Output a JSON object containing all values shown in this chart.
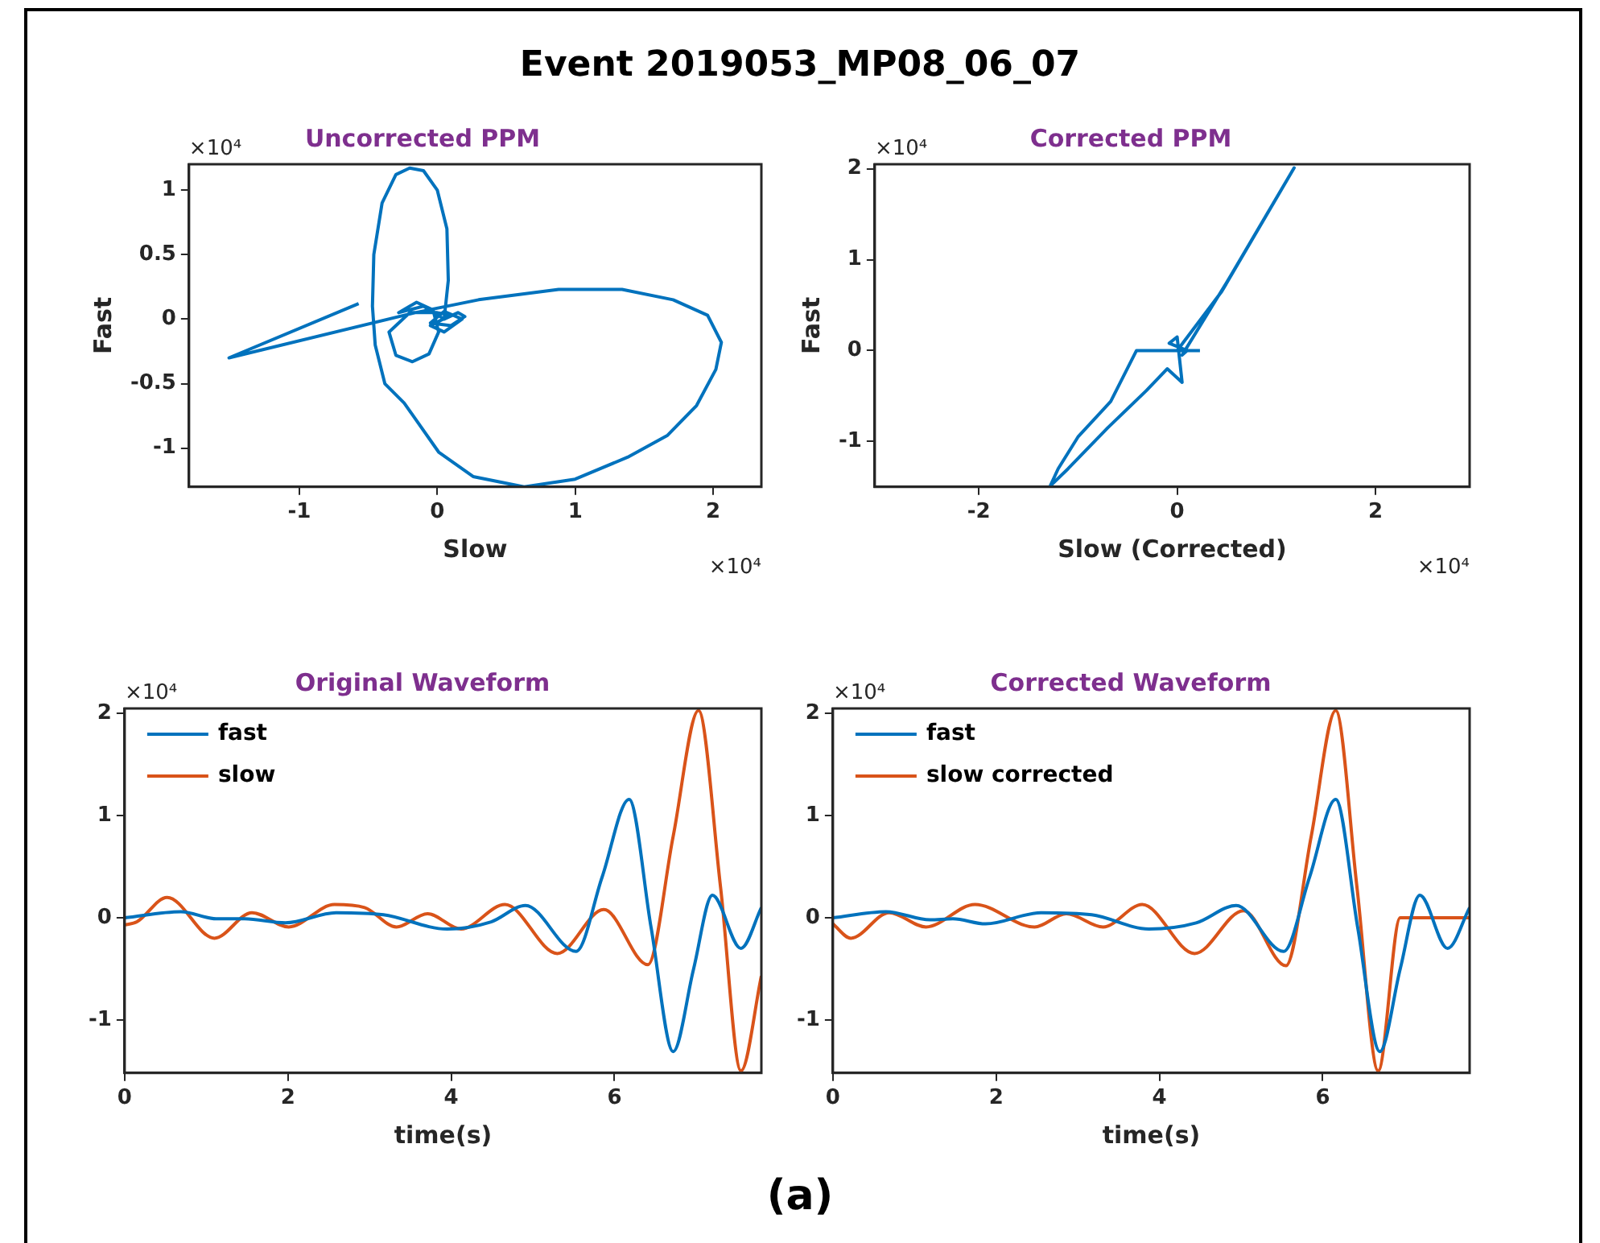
{
  "chart_data": [
    {
      "type": "other",
      "title": "Event 2019053_MP08_06_07",
      "annotations": [
        "(a)"
      ]
    },
    {
      "type": "line",
      "title": "Uncorrected PPM",
      "xlabel": "Slow",
      "ylabel": "Fast",
      "annotations": [
        "×10⁴",
        "×10⁴"
      ],
      "xlim": [
        -1.8,
        2.35
      ],
      "ylim": [
        -1.3,
        1.2
      ],
      "xticks": [
        -1,
        0,
        1,
        2
      ],
      "yticks": [
        -1,
        -0.5,
        0,
        0.5,
        1
      ],
      "series": [
        {
          "color": "#0072bd",
          "x": [
            0.05,
            0.15,
            0.2,
            0.1,
            -0.05,
            0.05,
            0.18,
            0.05,
            -0.05,
            0.1,
            0.0,
            -0.2,
            -0.35,
            -0.3,
            -0.18,
            -0.06,
            0.01,
            -0.03,
            -0.15,
            -0.28,
            -0.1,
            0.05,
            0.08,
            0.07,
            0.0,
            -0.1,
            -0.2,
            -0.3,
            -0.4,
            -0.46,
            -0.47,
            -0.45,
            -0.38,
            -0.24,
            0.01,
            0.26,
            0.63,
            1.0,
            1.38,
            1.67,
            1.88,
            2.02,
            2.06,
            1.96,
            1.71,
            1.34,
            0.88,
            0.3,
            -0.16,
            -1.51,
            -0.57
          ],
          "values": [
            0.0,
            0.05,
            0.02,
            -0.05,
            -0.03,
            0.06,
            0.0,
            -0.1,
            -0.05,
            0.03,
            0.05,
            0.05,
            -0.1,
            -0.28,
            -0.33,
            -0.27,
            -0.1,
            0.07,
            0.13,
            0.05,
            0.1,
            0.0,
            0.3,
            0.7,
            1.0,
            1.15,
            1.17,
            1.12,
            0.9,
            0.5,
            0.1,
            -0.2,
            -0.5,
            -0.65,
            -1.03,
            -1.22,
            -1.3,
            -1.24,
            -1.07,
            -0.9,
            -0.67,
            -0.39,
            -0.18,
            0.03,
            0.15,
            0.23,
            0.23,
            0.15,
            0.05,
            -0.3,
            0.12
          ]
        }
      ]
    },
    {
      "type": "line",
      "title": "Corrected PPM",
      "xlabel": "Slow (Corrected)",
      "ylabel": "Fast",
      "annotations": [
        "×10⁴",
        "×10⁴"
      ],
      "xlim": [
        -3.05,
        2.95
      ],
      "ylim": [
        -1.5,
        2.05
      ],
      "xticks": [
        -2,
        0,
        2
      ],
      "yticks": [
        -1,
        0,
        1,
        2
      ],
      "series": [
        {
          "color": "#0072bd",
          "x": [
            0.23,
            -0.41,
            -0.67,
            -1.0,
            -1.2,
            -1.28,
            -1.1,
            -0.7,
            -0.31,
            -0.1,
            0.05,
            0.0,
            -0.08,
            0.1,
            0.05,
            0.5,
            1.18,
            0.45,
            0.0
          ],
          "values": [
            0.0,
            0.0,
            -0.56,
            -0.95,
            -1.3,
            -1.49,
            -1.3,
            -0.85,
            -0.44,
            -0.2,
            -0.35,
            0.15,
            0.08,
            0.0,
            -0.05,
            0.75,
            2.01,
            0.65,
            0.0
          ]
        }
      ]
    },
    {
      "type": "line",
      "title": "Original Waveform",
      "xlabel": "time(s)",
      "annotations": [
        "×10⁴"
      ],
      "xlim": [
        0,
        7.8
      ],
      "ylim": [
        -1.52,
        2.05
      ],
      "xticks": [
        0,
        2,
        4,
        6
      ],
      "yticks": [
        -1,
        0,
        1,
        2
      ],
      "legend": "top left",
      "series": [
        {
          "name": "fast",
          "color": "#0072bd",
          "x": [
            0,
            0.69,
            1.12,
            1.47,
            1.97,
            2.59,
            3.17,
            3.95,
            4.49,
            4.91,
            5.53,
            5.85,
            6.18,
            6.45,
            6.72,
            6.97,
            7.2,
            7.55,
            7.8
          ],
          "values": [
            0,
            0.06,
            -0.01,
            -0.01,
            -0.05,
            0.05,
            0.03,
            -0.11,
            -0.04,
            0.12,
            -0.33,
            0.4,
            1.16,
            -0.1,
            -1.31,
            -0.5,
            0.22,
            -0.3,
            0.1
          ]
        },
        {
          "name": "slow",
          "color": "#d95319",
          "x": [
            0,
            0.15,
            0.52,
            1.1,
            1.56,
            2.01,
            2.57,
            2.94,
            3.33,
            3.71,
            4.12,
            4.66,
            5.3,
            5.87,
            6.41,
            6.72,
            7.03,
            7.3,
            7.55,
            7.8
          ],
          "values": [
            -0.07,
            -0.04,
            0.2,
            -0.2,
            0.05,
            -0.09,
            0.13,
            0.1,
            -0.09,
            0.04,
            -0.11,
            0.13,
            -0.35,
            0.08,
            -0.46,
            0.8,
            2.03,
            0.3,
            -1.5,
            -0.57
          ]
        }
      ]
    },
    {
      "type": "line",
      "title": "Corrected Waveform",
      "xlabel": "time(s)",
      "annotations": [
        "×10⁴"
      ],
      "xlim": [
        0,
        7.8
      ],
      "ylim": [
        -1.52,
        2.05
      ],
      "xticks": [
        0,
        2,
        4,
        6
      ],
      "yticks": [
        -1,
        0,
        1,
        2
      ],
      "legend": "top left",
      "series": [
        {
          "name": "fast",
          "color": "#0072bd",
          "x": [
            0,
            0.65,
            1.19,
            1.47,
            1.87,
            2.55,
            3.17,
            3.87,
            4.45,
            4.94,
            5.52,
            5.84,
            6.16,
            6.43,
            6.7,
            6.95,
            7.19,
            7.53,
            7.8
          ],
          "values": [
            0,
            0.06,
            -0.02,
            -0.01,
            -0.06,
            0.05,
            0.03,
            -0.11,
            -0.05,
            0.12,
            -0.33,
            0.4,
            1.16,
            -0.1,
            -1.31,
            -0.5,
            0.22,
            -0.3,
            0.1
          ]
        },
        {
          "name": "slow corrected",
          "color": "#d95319",
          "x": [
            0,
            0.22,
            0.69,
            1.14,
            1.74,
            2.47,
            2.86,
            3.31,
            3.79,
            4.43,
            5.03,
            5.55,
            5.86,
            6.16,
            6.42,
            6.68,
            6.95,
            7.8
          ],
          "values": [
            -0.06,
            -0.2,
            0.05,
            -0.09,
            0.13,
            -0.09,
            0.04,
            -0.09,
            0.13,
            -0.35,
            0.07,
            -0.47,
            0.8,
            2.03,
            0.3,
            -1.5,
            0,
            0
          ]
        }
      ]
    }
  ]
}
